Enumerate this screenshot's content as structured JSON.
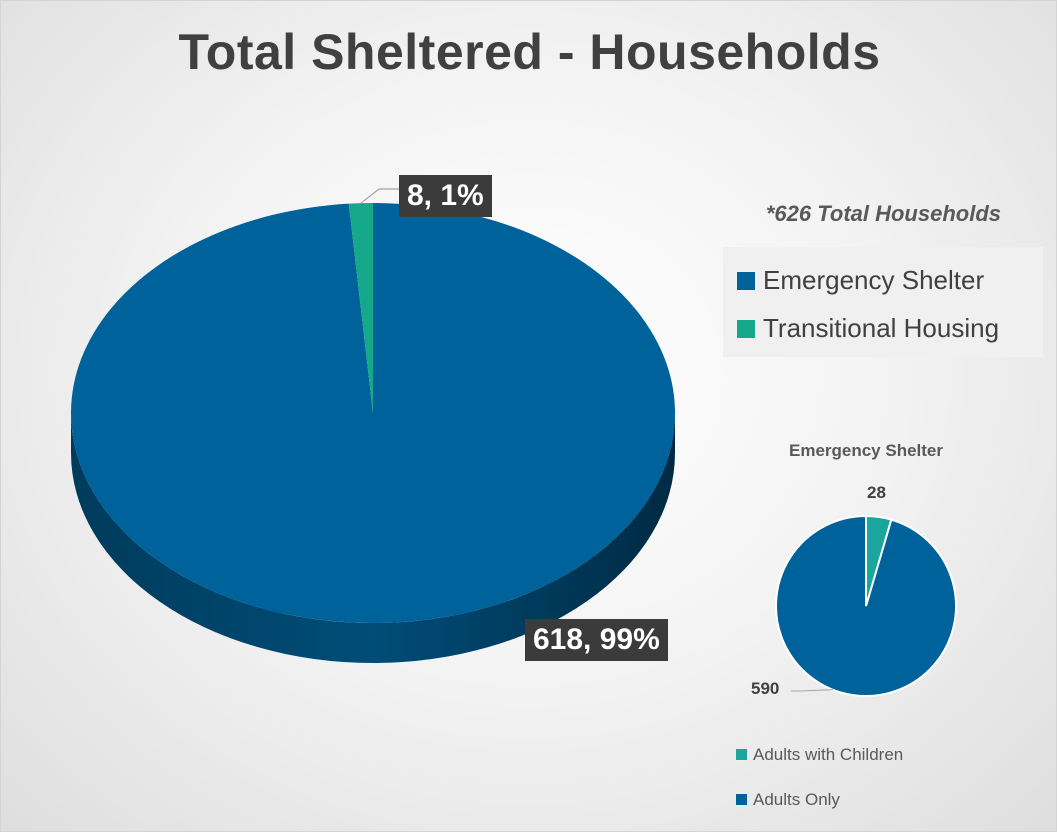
{
  "title": "Total Sheltered - Households",
  "note": "*626 Total Households",
  "colors": {
    "blue": "#00629b",
    "teal": "#16a88a",
    "teal_small": "#1aa69c"
  },
  "chart_data": [
    {
      "type": "pie",
      "title": "Total Sheltered - Households",
      "categories": [
        "Emergency Shelter",
        "Transitional Housing"
      ],
      "values": [
        618,
        8
      ],
      "data_labels": [
        "618, 99%",
        "8, 1%"
      ],
      "legend": "right",
      "style": "3d"
    },
    {
      "type": "pie",
      "title": "Emergency Shelter",
      "categories": [
        "Adults with Children",
        "Adults Only"
      ],
      "values": [
        28,
        590
      ],
      "data_labels": [
        "28",
        "590"
      ],
      "legend": "bottom"
    }
  ]
}
